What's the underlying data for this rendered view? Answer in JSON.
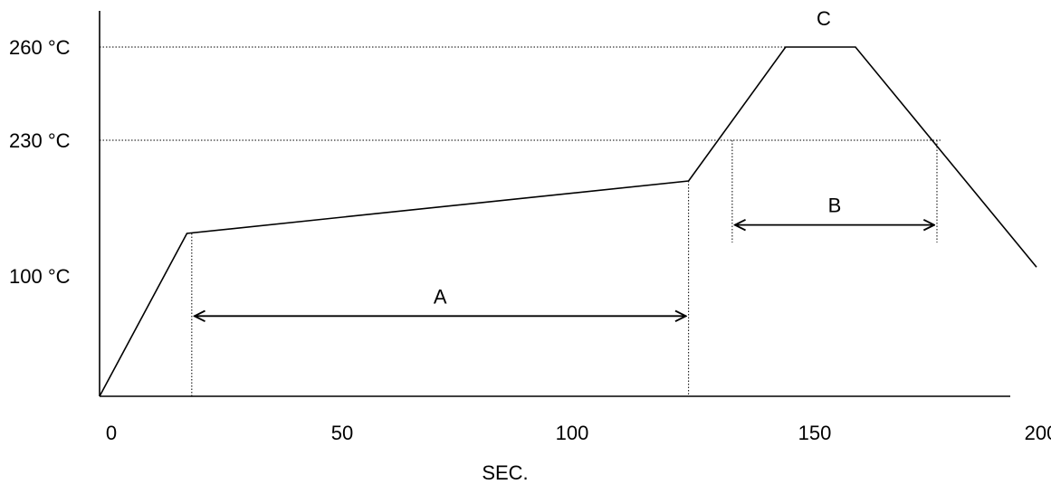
{
  "chart_data": {
    "type": "line",
    "title": "",
    "xlabel": "SEC.",
    "ylabel": "",
    "x_ticks": [
      0,
      50,
      100,
      150,
      200
    ],
    "y_ticks": [
      {
        "value": 100,
        "label": "100 °C"
      },
      {
        "value": 230,
        "label": "230 °C"
      },
      {
        "value": 260,
        "label": "260 °C"
      }
    ],
    "series": [
      {
        "points": [
          {
            "x": 0,
            "y": 25
          },
          {
            "x": 18,
            "y": 148
          },
          {
            "x": 124,
            "y": 210
          },
          {
            "x": 144,
            "y": 260
          },
          {
            "x": 159,
            "y": 260
          },
          {
            "x": 199,
            "y": 110
          }
        ]
      }
    ],
    "reference_lines": [
      {
        "y": 260,
        "x_from": 0,
        "x_to": 144
      },
      {
        "y": 230,
        "x_from": 0,
        "x_to": 178
      }
    ],
    "annotations": [
      {
        "label": "A",
        "x_from": 19,
        "x_to": 124,
        "y": 75
      },
      {
        "label": "B",
        "x_from": 133,
        "x_to": 177,
        "y": 158
      },
      {
        "label": "C",
        "x": 152,
        "y": 260
      }
    ],
    "vertical_markers": [
      {
        "x": 19,
        "y_to": 148
      },
      {
        "x": 124,
        "y_to": 210
      },
      {
        "x": 133,
        "y_to": 230
      },
      {
        "x": 177,
        "y_to": 230
      }
    ]
  }
}
